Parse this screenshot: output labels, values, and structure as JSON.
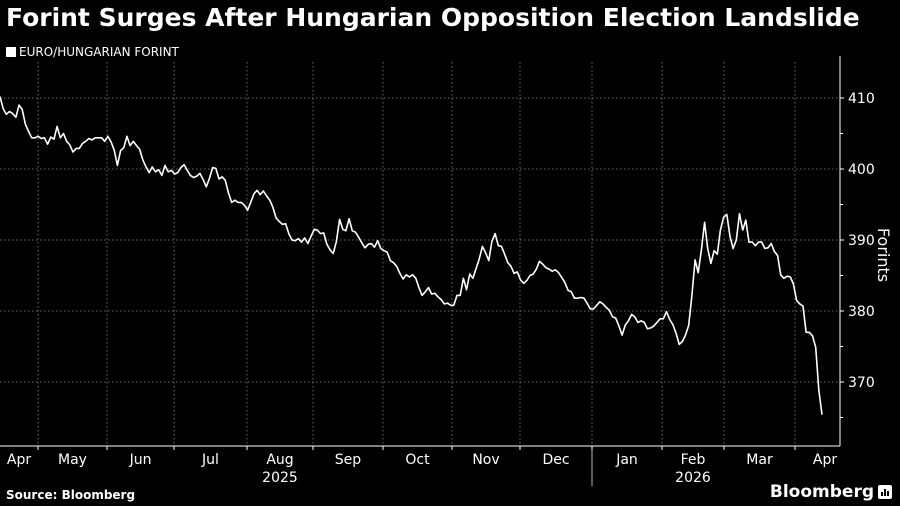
{
  "title": "Forint Surges After Hungarian Opposition Election Landslide",
  "source": "Source: Bloomberg",
  "brand": "Bloomberg",
  "chart_data": {
    "type": "line",
    "title": "Forint Surges After Hungarian Opposition Election Landslide",
    "legend": [
      "EURO/HUNGARIAN FORINT"
    ],
    "legend_position": "top-left",
    "ylabel": "Forints",
    "xlabel": "",
    "ylim": [
      361,
      413
    ],
    "yticks": [
      370,
      380,
      390,
      400,
      410
    ],
    "y_axis_side": "right",
    "grid": true,
    "x_months": [
      "Apr",
      "May",
      "Jun",
      "Jul",
      "Aug",
      "Sep",
      "Oct",
      "Nov",
      "Dec",
      "Jan",
      "Feb",
      "Mar",
      "Apr"
    ],
    "x_years": [
      {
        "label": "2025",
        "under": "Aug"
      },
      {
        "label": "2026",
        "under": "Feb"
      }
    ],
    "series": [
      {
        "name": "EURO/HUNGARIAN FORINT",
        "color": "#ffffff",
        "values": [
          410.2,
          408.5,
          407.7,
          408.1,
          407.8,
          407.3,
          409.0,
          408.4,
          406.3,
          405.3,
          404.4,
          404.4,
          404.6,
          404.3,
          404.4,
          403.5,
          404.5,
          404.2,
          406.0,
          404.4,
          405.0,
          403.9,
          403.4,
          402.4,
          402.9,
          402.9,
          403.6,
          403.9,
          404.3,
          404.1,
          404.4,
          404.4,
          404.4,
          403.9,
          404.6,
          403.8,
          402.6,
          400.5,
          402.6,
          403.0,
          404.6,
          403.3,
          403.9,
          403.3,
          402.8,
          401.3,
          400.3,
          399.5,
          400.3,
          399.6,
          399.9,
          399.1,
          400.5,
          399.6,
          399.8,
          399.3,
          399.5,
          400.2,
          400.6,
          399.8,
          399.1,
          398.8,
          399.0,
          399.4,
          398.5,
          397.5,
          398.7,
          400.2,
          400.1,
          398.6,
          398.9,
          398.4,
          396.6,
          395.3,
          395.6,
          395.3,
          395.3,
          394.9,
          394.2,
          395.3,
          396.5,
          397.0,
          396.4,
          396.9,
          396.2,
          395.6,
          394.6,
          393.1,
          392.6,
          392.2,
          392.3,
          390.9,
          390.0,
          389.9,
          390.2,
          389.7,
          390.3,
          389.5,
          390.5,
          391.5,
          391.4,
          390.9,
          391.0,
          389.4,
          388.6,
          388.1,
          389.8,
          392.9,
          391.5,
          391.3,
          393.0,
          391.3,
          391.1,
          390.4,
          389.6,
          388.9,
          389.4,
          389.5,
          389.0,
          389.9,
          388.8,
          388.5,
          388.3,
          387.1,
          386.8,
          386.3,
          385.3,
          384.5,
          385.1,
          384.8,
          385.1,
          384.6,
          383.3,
          382.2,
          382.7,
          383.3,
          382.4,
          382.5,
          382.0,
          381.6,
          381.0,
          381.1,
          380.8,
          380.8,
          382.2,
          382.2,
          384.6,
          383.0,
          385.2,
          384.6,
          386.0,
          387.3,
          389.1,
          388.2,
          387.1,
          389.8,
          390.9,
          389.2,
          389.1,
          388.0,
          386.8,
          386.3,
          385.3,
          385.5,
          384.4,
          383.9,
          384.3,
          385.0,
          385.2,
          385.9,
          387.0,
          386.6,
          386.1,
          385.9,
          385.6,
          385.8,
          385.4,
          384.7,
          384.0,
          382.9,
          382.7,
          381.8,
          381.8,
          381.9,
          381.8,
          381.1,
          380.3,
          380.3,
          380.8,
          381.3,
          381.0,
          380.5,
          380.1,
          379.2,
          379.0,
          377.9,
          376.6,
          378.0,
          378.6,
          379.5,
          379.2,
          378.4,
          378.6,
          378.4,
          377.5,
          377.6,
          377.9,
          378.4,
          378.9,
          378.9,
          379.9,
          378.8,
          378.1,
          376.9,
          375.3,
          375.7,
          376.6,
          378.0,
          382.2,
          387.2,
          385.4,
          388.6,
          392.5,
          388.8,
          386.7,
          388.5,
          388.0,
          391.4,
          393.2,
          393.6,
          390.5,
          388.8,
          390.0,
          393.7,
          391.4,
          392.8,
          389.7,
          389.7,
          389.2,
          389.7,
          389.7,
          388.8,
          388.9,
          389.5,
          388.4,
          387.8,
          385.1,
          384.6,
          384.9,
          384.8,
          383.8,
          381.5,
          381.0,
          380.7,
          377.0,
          377.0,
          376.5,
          374.9,
          368.9,
          365.4
        ]
      }
    ]
  }
}
